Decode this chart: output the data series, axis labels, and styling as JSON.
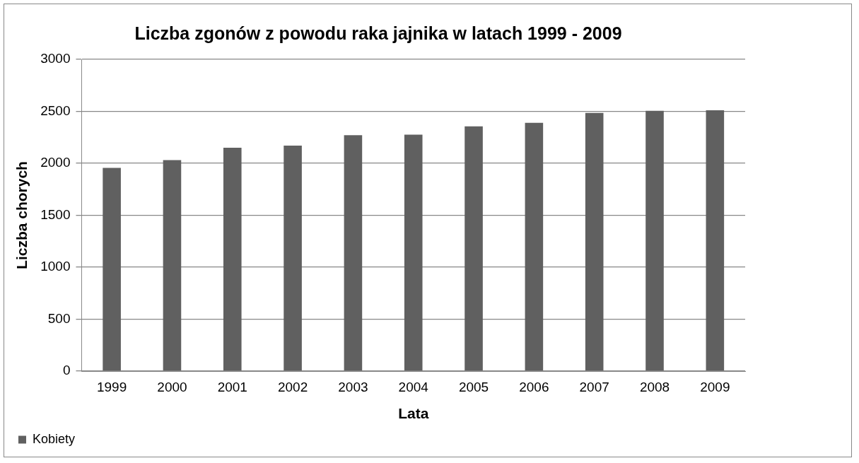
{
  "chart_data": {
    "type": "bar",
    "title": "Liczba zgonów z powodu raka jajnika w latach 1999 - 2009",
    "xlabel": "Lata",
    "ylabel": "Liczba chorych",
    "categories": [
      "1999",
      "2000",
      "2001",
      "2002",
      "2003",
      "2004",
      "2005",
      "2006",
      "2007",
      "2008",
      "2009"
    ],
    "series": [
      {
        "name": "Kobiety",
        "color": "#606060",
        "values": [
          1955,
          2030,
          2150,
          2170,
          2270,
          2275,
          2355,
          2390,
          2485,
          2505,
          2510
        ]
      }
    ],
    "ylim": [
      0,
      3000
    ],
    "yticks": [
      0,
      500,
      1000,
      1500,
      2000,
      2500,
      3000
    ],
    "grid": "y",
    "legend": "bottom left"
  }
}
